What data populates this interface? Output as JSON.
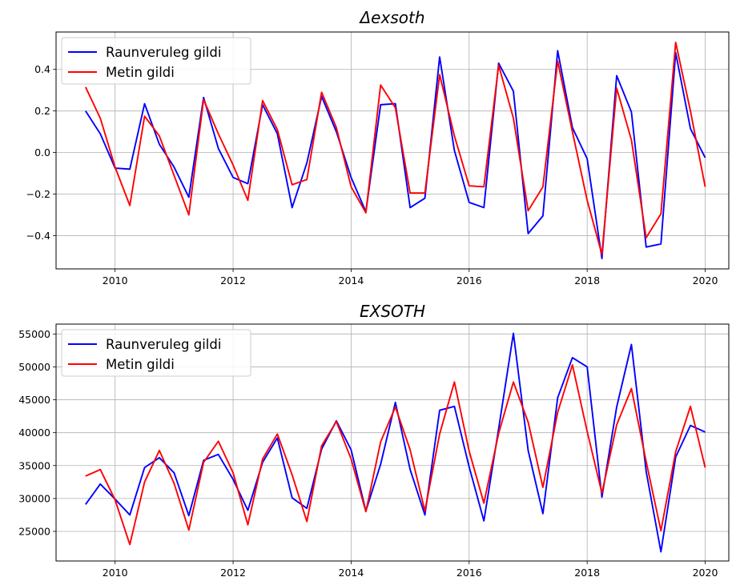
{
  "chart_data": [
    {
      "type": "line",
      "title": "Δexsoth",
      "xlabel": "",
      "ylabel": "",
      "xlim": [
        2009.0,
        2020.4
      ],
      "ylim": [
        -0.56,
        0.58
      ],
      "xticks": [
        2010,
        2012,
        2014,
        2016,
        2018,
        2020
      ],
      "yticks": [
        -0.4,
        -0.2,
        0.0,
        0.2,
        0.4
      ],
      "ytick_labels": [
        "−0.4",
        "−0.2",
        "0.0",
        "0.2",
        "0.4"
      ],
      "grid": true,
      "legend_position": "top-left",
      "x": [
        2009.5,
        2009.75,
        2010.0,
        2010.25,
        2010.5,
        2010.75,
        2011.0,
        2011.25,
        2011.5,
        2011.75,
        2012.0,
        2012.25,
        2012.5,
        2012.75,
        2013.0,
        2013.25,
        2013.5,
        2013.75,
        2014.0,
        2014.25,
        2014.5,
        2014.75,
        2015.0,
        2015.25,
        2015.5,
        2015.75,
        2016.0,
        2016.25,
        2016.5,
        2016.75,
        2017.0,
        2017.25,
        2017.5,
        2017.75,
        2018.0,
        2018.25,
        2018.5,
        2018.75,
        2019.0,
        2019.25,
        2019.5,
        2019.75,
        2020.0
      ],
      "series": [
        {
          "name": "Raunveruleg gildi",
          "color": "#0000ff",
          "values": [
            0.2,
            0.09,
            -0.075,
            -0.08,
            0.235,
            0.04,
            -0.07,
            -0.215,
            0.265,
            0.02,
            -0.12,
            -0.15,
            0.23,
            0.09,
            -0.265,
            -0.05,
            0.27,
            0.1,
            -0.12,
            -0.285,
            0.23,
            0.235,
            -0.265,
            -0.22,
            0.46,
            0.01,
            -0.24,
            -0.265,
            0.43,
            0.295,
            -0.39,
            -0.305,
            0.49,
            0.12,
            -0.03,
            -0.51,
            0.37,
            0.195,
            -0.455,
            -0.44,
            0.48,
            0.115,
            -0.025
          ]
        },
        {
          "name": "Metin gildi",
          "color": "#ff0000",
          "values": [
            0.315,
            0.165,
            -0.07,
            -0.255,
            0.175,
            0.08,
            -0.11,
            -0.3,
            0.255,
            0.09,
            -0.06,
            -0.23,
            0.25,
            0.11,
            -0.155,
            -0.13,
            0.29,
            0.12,
            -0.165,
            -0.29,
            0.325,
            0.215,
            -0.195,
            -0.195,
            0.375,
            0.08,
            -0.16,
            -0.165,
            0.42,
            0.165,
            -0.28,
            -0.165,
            0.44,
            0.1,
            -0.23,
            -0.49,
            0.31,
            0.06,
            -0.41,
            -0.295,
            0.53,
            0.2,
            -0.165
          ]
        }
      ]
    },
    {
      "type": "line",
      "title": "EXSOTH",
      "xlabel": "",
      "ylabel": "",
      "xlim": [
        2009.0,
        2020.4
      ],
      "ylim": [
        20500,
        56500
      ],
      "xticks": [
        2010,
        2012,
        2014,
        2016,
        2018,
        2020
      ],
      "yticks": [
        25000,
        30000,
        35000,
        40000,
        45000,
        50000,
        55000
      ],
      "ytick_labels": [
        "25000",
        "30000",
        "35000",
        "40000",
        "45000",
        "50000",
        "55000"
      ],
      "grid": true,
      "legend_position": "top-left",
      "x": [
        2009.5,
        2009.75,
        2010.0,
        2010.25,
        2010.5,
        2010.75,
        2011.0,
        2011.25,
        2011.5,
        2011.75,
        2012.0,
        2012.25,
        2012.5,
        2012.75,
        2013.0,
        2013.25,
        2013.5,
        2013.75,
        2014.0,
        2014.25,
        2014.5,
        2014.75,
        2015.0,
        2015.25,
        2015.5,
        2015.75,
        2016.0,
        2016.25,
        2016.5,
        2016.75,
        2017.0,
        2017.25,
        2017.5,
        2017.75,
        2018.0,
        2018.25,
        2018.5,
        2018.75,
        2019.0,
        2019.25,
        2019.5,
        2019.75,
        2020.0
      ],
      "series": [
        {
          "name": "Raunveruleg gildi",
          "color": "#0000ff",
          "values": [
            29100,
            32200,
            29900,
            27500,
            34700,
            36200,
            33900,
            27400,
            35800,
            36700,
            32900,
            28200,
            35500,
            39200,
            30100,
            28500,
            37500,
            41800,
            37400,
            28100,
            35200,
            44600,
            34400,
            27500,
            43400,
            44000,
            34800,
            26600,
            40600,
            55100,
            37300,
            27700,
            45300,
            51400,
            50000,
            30200,
            43900,
            53400,
            34100,
            21900,
            36300,
            41100,
            40100
          ]
        },
        {
          "name": "Metin gildi",
          "color": "#ff0000",
          "values": [
            33400,
            34400,
            29800,
            23000,
            32500,
            37300,
            32300,
            25200,
            35500,
            38700,
            33900,
            26000,
            36000,
            39800,
            33600,
            26500,
            38000,
            41700,
            36000,
            28000,
            38600,
            43900,
            37400,
            28100,
            39800,
            47700,
            37200,
            29300,
            39900,
            47700,
            41600,
            31700,
            43100,
            50300,
            40200,
            30800,
            41200,
            46700,
            35600,
            25100,
            37100,
            44000,
            34700
          ]
        }
      ]
    }
  ]
}
